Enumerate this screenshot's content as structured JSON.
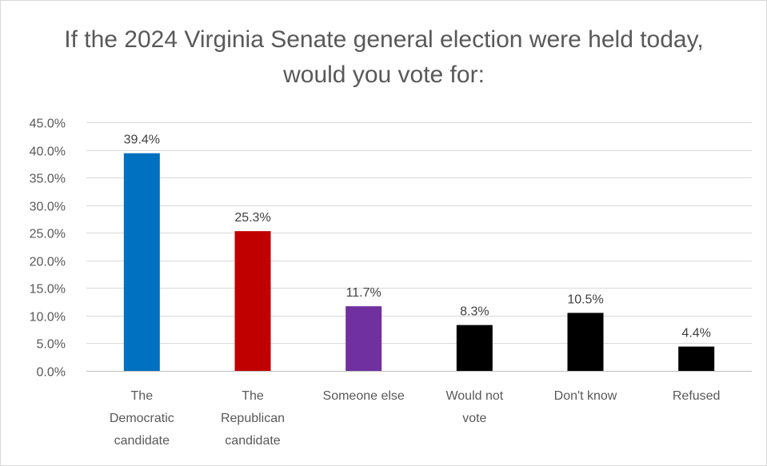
{
  "chart_data": {
    "type": "bar",
    "title": "If the 2024 Virginia Senate general election were held today, would you vote for:",
    "categories": [
      "The Democratic candidate",
      "The Republican candidate",
      "Someone else",
      "Would not vote",
      "Don't know",
      "Refused"
    ],
    "category_lines": [
      [
        "The",
        "Democratic",
        "candidate"
      ],
      [
        "The",
        "Republican",
        "candidate"
      ],
      [
        "Someone else"
      ],
      [
        "Would not",
        "vote"
      ],
      [
        "Don't know"
      ],
      [
        "Refused"
      ]
    ],
    "values": [
      39.4,
      25.3,
      11.7,
      8.3,
      10.5,
      4.4
    ],
    "data_labels": [
      "39.4%",
      "25.3%",
      "11.7%",
      "8.3%",
      "10.5%",
      "4.4%"
    ],
    "colors": [
      "#0070c0",
      "#c00000",
      "#7030a0",
      "#000000",
      "#000000",
      "#000000"
    ],
    "ylim": [
      0,
      45
    ],
    "yticks": [
      0,
      5,
      10,
      15,
      20,
      25,
      30,
      35,
      40,
      45
    ],
    "ytick_labels": [
      "0.0%",
      "5.0%",
      "10.0%",
      "15.0%",
      "20.0%",
      "25.0%",
      "30.0%",
      "35.0%",
      "40.0%",
      "45.0%"
    ],
    "gridlines": true,
    "legend": "none",
    "xlabel": "",
    "ylabel": ""
  }
}
